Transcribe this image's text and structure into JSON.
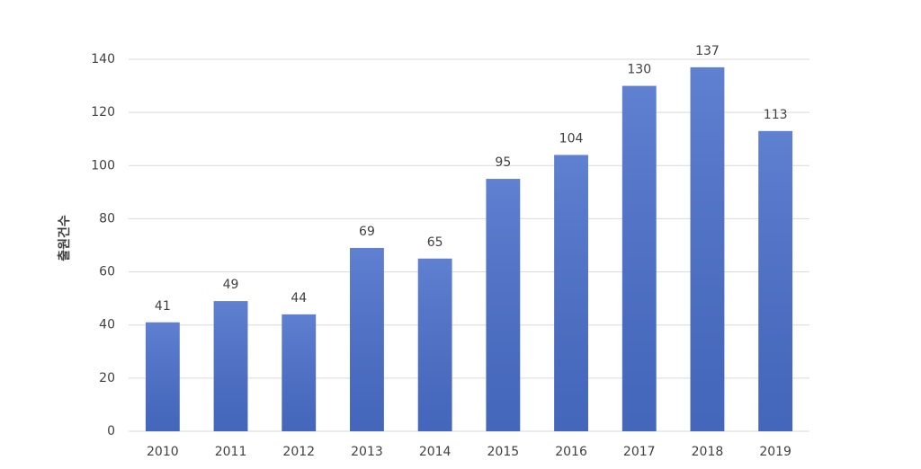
{
  "chart_data": {
    "type": "bar",
    "y_label": "출원건수",
    "categories": [
      "2010",
      "2011",
      "2012",
      "2013",
      "2014",
      "2015",
      "2016",
      "2017",
      "2018",
      "2019"
    ],
    "values": [
      41,
      49,
      44,
      69,
      65,
      95,
      104,
      130,
      137,
      113
    ],
    "color": "#4a6fcb",
    "ylim": [
      0,
      140
    ],
    "yticks": [
      0,
      20,
      40,
      60,
      80,
      100,
      120,
      140
    ],
    "grid": true
  }
}
